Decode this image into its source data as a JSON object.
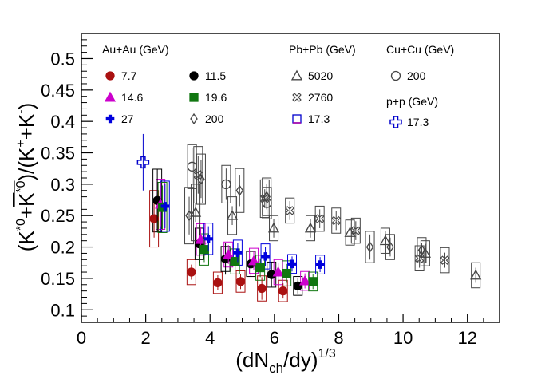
{
  "chart_data": {
    "type": "scatter",
    "xlabel_parts": [
      "(dN",
      "ch",
      "/dy)",
      "1/3"
    ],
    "ylabel_parts": [
      "(K",
      "*0",
      "+",
      "K",
      "*0",
      ")/(K",
      "+",
      "+K",
      "-",
      ")"
    ],
    "xlim": [
      0,
      13
    ],
    "ylim": [
      0.08,
      0.54
    ],
    "xticks": [
      "0",
      "2",
      "4",
      "6",
      "8",
      "10",
      "12"
    ],
    "yticks": [
      "0.1",
      "0.15",
      "0.2",
      "0.25",
      "0.3",
      "0.35",
      "0.4",
      "0.45",
      "0.5"
    ],
    "legend_headers": {
      "auau": "Au+Au (GeV)",
      "pbpb": "Pb+Pb (GeV)",
      "cucu": "Cu+Cu (GeV)",
      "pp": "p+p (GeV)"
    },
    "series": [
      {
        "name": "7.7",
        "marker": "circle",
        "filled": true,
        "color": "#aa1111",
        "points": [
          {
            "x": 2.26,
            "y": 0.245,
            "ey": 0.03,
            "sh": 0.045
          },
          {
            "x": 3.42,
            "y": 0.16,
            "ey": 0.012,
            "sh": 0.02
          },
          {
            "x": 4.24,
            "y": 0.143,
            "ey": 0.012,
            "sh": 0.017
          },
          {
            "x": 4.95,
            "y": 0.145,
            "ey": 0.012,
            "sh": 0.017
          },
          {
            "x": 5.61,
            "y": 0.134,
            "ey": 0.018,
            "sh": 0.02
          },
          {
            "x": 6.27,
            "y": 0.13,
            "ey": 0.012,
            "sh": 0.017
          }
        ]
      },
      {
        "name": "11.5",
        "marker": "circle",
        "filled": true,
        "color": "#000000",
        "points": [
          {
            "x": 2.36,
            "y": 0.274,
            "ey": 0.05,
            "sh": 0.05
          },
          {
            "x": 3.67,
            "y": 0.205,
            "ey": 0.03,
            "sh": 0.025
          },
          {
            "x": 4.48,
            "y": 0.181,
            "ey": 0.025,
            "sh": 0.02
          },
          {
            "x": 5.27,
            "y": 0.173,
            "ey": 0.02,
            "sh": 0.02
          },
          {
            "x": 5.91,
            "y": 0.156,
            "ey": 0.02,
            "sh": 0.02
          },
          {
            "x": 6.73,
            "y": 0.138,
            "ey": 0.012,
            "sh": 0.015
          }
        ]
      },
      {
        "name": "14.6",
        "marker": "triangle",
        "filled": true,
        "color": "#cc00cc",
        "points": [
          {
            "x": 2.46,
            "y": 0.268,
            "ey": 0.035,
            "sh": 0.04
          },
          {
            "x": 3.71,
            "y": 0.212,
            "ey": 0.02,
            "sh": 0.025
          },
          {
            "x": 4.57,
            "y": 0.188,
            "ey": 0.015,
            "sh": 0.02
          },
          {
            "x": 5.36,
            "y": 0.178,
            "ey": 0.015,
            "sh": 0.02
          },
          {
            "x": 6.12,
            "y": 0.16,
            "ey": 0.015,
            "sh": 0.02
          },
          {
            "x": 6.95,
            "y": 0.146,
            "ey": 0.012,
            "sh": 0.015
          }
        ]
      },
      {
        "name": "19.6",
        "marker": "square",
        "filled": true,
        "color": "#117711",
        "points": [
          {
            "x": 2.52,
            "y": 0.263,
            "ey": 0.035,
            "sh": 0.04
          },
          {
            "x": 3.82,
            "y": 0.196,
            "ey": 0.02,
            "sh": 0.025
          },
          {
            "x": 4.78,
            "y": 0.177,
            "ey": 0.015,
            "sh": 0.02
          },
          {
            "x": 5.56,
            "y": 0.167,
            "ey": 0.015,
            "sh": 0.02
          },
          {
            "x": 6.38,
            "y": 0.158,
            "ey": 0.015,
            "sh": 0.02
          },
          {
            "x": 7.2,
            "y": 0.145,
            "ey": 0.012,
            "sh": 0.015
          }
        ]
      },
      {
        "name": "27",
        "marker": "cross",
        "filled": true,
        "color": "#0000dd",
        "points": [
          {
            "x": 2.6,
            "y": 0.265,
            "ey": 0.035,
            "sh": 0.04
          },
          {
            "x": 3.95,
            "y": 0.213,
            "ey": 0.02,
            "sh": 0.025
          },
          {
            "x": 4.86,
            "y": 0.191,
            "ey": 0.015,
            "sh": 0.02
          },
          {
            "x": 5.72,
            "y": 0.185,
            "ey": 0.015,
            "sh": 0.02
          },
          {
            "x": 6.55,
            "y": 0.173,
            "ey": 0.012,
            "sh": 0.015
          },
          {
            "x": 7.42,
            "y": 0.172,
            "ey": 0.012,
            "sh": 0.015
          }
        ]
      },
      {
        "name": "200",
        "group": "auau",
        "marker": "diamond",
        "filled": false,
        "color": "#444444",
        "points": [
          {
            "x": 3.35,
            "y": 0.25,
            "ey": 0.03,
            "sh": 0.045
          },
          {
            "x": 3.72,
            "y": 0.308,
            "ey": 0.03,
            "sh": 0.04
          },
          {
            "x": 4.92,
            "y": 0.29,
            "ey": 0.025,
            "sh": 0.035
          },
          {
            "x": 5.76,
            "y": 0.28,
            "ey": 0.02,
            "sh": 0.03
          },
          {
            "x": 8.97,
            "y": 0.2,
            "ey": 0.02,
            "sh": 0.025
          },
          {
            "x": 9.6,
            "y": 0.2,
            "ey": 0.015,
            "sh": 0.02
          },
          {
            "x": 10.58,
            "y": 0.195,
            "ey": 0.012,
            "sh": 0.02
          }
        ]
      },
      {
        "name": "5020",
        "marker": "triangle",
        "filled": false,
        "color": "#444444",
        "points": [
          {
            "x": 3.55,
            "y": 0.255,
            "ey": 0.015,
            "sh": 0.045
          },
          {
            "x": 4.69,
            "y": 0.25,
            "ey": 0.015,
            "sh": 0.03
          },
          {
            "x": 5.98,
            "y": 0.23,
            "ey": 0.015,
            "sh": 0.02
          },
          {
            "x": 7.12,
            "y": 0.23,
            "ey": 0.015,
            "sh": 0.02
          },
          {
            "x": 8.35,
            "y": 0.223,
            "ey": 0.015,
            "sh": 0.02
          },
          {
            "x": 9.45,
            "y": 0.21,
            "ey": 0.015,
            "sh": 0.02
          },
          {
            "x": 10.69,
            "y": 0.19,
            "ey": 0.015,
            "sh": 0.02
          },
          {
            "x": 12.26,
            "y": 0.155,
            "ey": 0.012,
            "sh": 0.02
          }
        ]
      },
      {
        "name": "2760",
        "marker": "xcross",
        "filled": false,
        "color": "#444444",
        "points": [
          {
            "x": 3.63,
            "y": 0.315,
            "ey": 0.03,
            "sh": 0.045
          },
          {
            "x": 5.7,
            "y": 0.277,
            "ey": 0.015,
            "sh": 0.03
          },
          {
            "x": 6.48,
            "y": 0.258,
            "ey": 0.015,
            "sh": 0.02
          },
          {
            "x": 7.41,
            "y": 0.245,
            "ey": 0.015,
            "sh": 0.02
          },
          {
            "x": 7.92,
            "y": 0.242,
            "ey": 0.015,
            "sh": 0.02
          },
          {
            "x": 8.53,
            "y": 0.226,
            "ey": 0.015,
            "sh": 0.02
          },
          {
            "x": 10.51,
            "y": 0.182,
            "ey": 0.015,
            "sh": 0.02
          },
          {
            "x": 11.3,
            "y": 0.179,
            "ey": 0.012,
            "sh": 0.02
          }
        ]
      },
      {
        "name": "17.3",
        "group": "pbpb",
        "marker": "square",
        "filled": false,
        "color": "#0000cc",
        "points": []
      },
      {
        "name": "200",
        "group": "cucu",
        "marker": "circle",
        "filled": false,
        "color": "#444444",
        "points": [
          {
            "x": 3.44,
            "y": 0.328,
            "ey": 0.03,
            "sh": 0.035
          },
          {
            "x": 4.5,
            "y": 0.3,
            "ey": 0.025,
            "sh": 0.03
          },
          {
            "x": 5.77,
            "y": 0.27,
            "ey": 0.02,
            "sh": 0.025
          }
        ]
      },
      {
        "name": "17.3",
        "group": "pp",
        "marker": "opencross",
        "filled": false,
        "color": "#0000cc",
        "points": [
          {
            "x": 1.92,
            "y": 0.335,
            "ey": 0.045,
            "sh": 0
          }
        ]
      }
    ]
  }
}
